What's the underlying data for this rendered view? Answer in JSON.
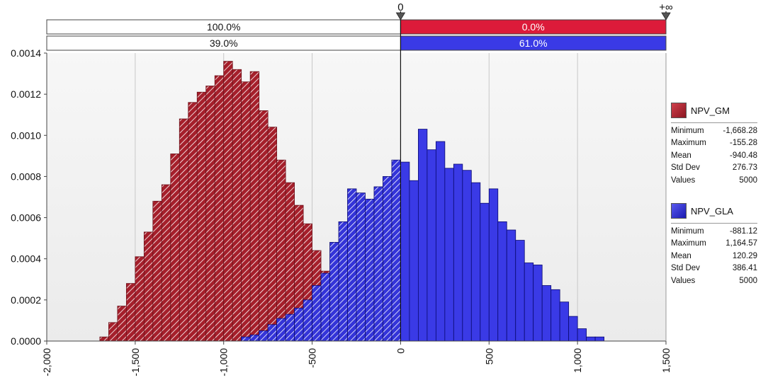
{
  "chart_data": {
    "type": "bar",
    "title": "",
    "xlabel": "",
    "ylabel": "",
    "xlim": [
      -2000,
      1500
    ],
    "ylim": [
      0,
      0.0014
    ],
    "bin_width": 50,
    "x_ticks": [
      "-2,000",
      "-1,500",
      "-1,000",
      "-500",
      "0",
      "500",
      "1,000",
      "1,500"
    ],
    "y_ticks": [
      "0.0000",
      "0.0002",
      "0.0004",
      "0.0006",
      "0.0008",
      "0.0010",
      "0.0012",
      "0.0014"
    ],
    "grid": true,
    "legend_position": "right",
    "series": [
      {
        "name": "NPV_GM",
        "color": "#b3232f",
        "bins_start": [
          -1700,
          -1650,
          -1600,
          -1550,
          -1500,
          -1450,
          -1400,
          -1350,
          -1300,
          -1250,
          -1200,
          -1150,
          -1100,
          -1050,
          -1000,
          -950,
          -900,
          -850,
          -800,
          -750,
          -700,
          -650,
          -600,
          -550,
          -500,
          -450,
          -400,
          -350,
          -300,
          -250
        ],
        "density": [
          2e-05,
          9e-05,
          0.00017,
          0.00028,
          0.00041,
          0.00053,
          0.00068,
          0.00076,
          0.00091,
          0.00108,
          0.00116,
          0.00121,
          0.00124,
          0.00129,
          0.00136,
          0.00132,
          0.00126,
          0.00131,
          0.00112,
          0.00104,
          0.00088,
          0.00077,
          0.00066,
          0.00057,
          0.00044,
          0.00034,
          0.00022,
          0.00015,
          9e-05,
          4e-05
        ],
        "stats": [
          {
            "label": "Minimum",
            "value": "-1,668.28"
          },
          {
            "label": "Maximum",
            "value": "-155.28"
          },
          {
            "label": "Mean",
            "value": "-940.48"
          },
          {
            "label": "Std Dev",
            "value": "276.73"
          },
          {
            "label": "Values",
            "value": "5000"
          }
        ]
      },
      {
        "name": "NPV_GLA",
        "color": "#3a3ae6",
        "bins_start": [
          -900,
          -850,
          -800,
          -750,
          -700,
          -650,
          -600,
          -550,
          -500,
          -450,
          -400,
          -350,
          -300,
          -250,
          -200,
          -150,
          -100,
          -50,
          0,
          50,
          100,
          150,
          200,
          250,
          300,
          350,
          400,
          450,
          500,
          550,
          600,
          650,
          700,
          750,
          800,
          850,
          900,
          950,
          1000,
          1050,
          1100
        ],
        "density": [
          2e-05,
          3e-05,
          5e-05,
          8e-05,
          0.00011,
          0.00013,
          0.00016,
          0.0002,
          0.00027,
          0.00033,
          0.00048,
          0.00058,
          0.00074,
          0.00072,
          0.00069,
          0.00075,
          0.0008,
          0.00088,
          0.00087,
          0.00078,
          0.00103,
          0.00093,
          0.00097,
          0.00084,
          0.00086,
          0.00083,
          0.00077,
          0.00067,
          0.00074,
          0.00058,
          0.00054,
          0.00049,
          0.00038,
          0.00037,
          0.00027,
          0.00025,
          0.00019,
          0.00012,
          6e-05,
          2e-05,
          2e-05
        ],
        "stats": [
          {
            "label": "Minimum",
            "value": "-881.12"
          },
          {
            "label": "Maximum",
            "value": "1,164.57"
          },
          {
            "label": "Mean",
            "value": "120.29"
          },
          {
            "label": "Std Dev",
            "value": "386.41"
          },
          {
            "label": "Values",
            "value": "5000"
          }
        ]
      }
    ],
    "delimiters": {
      "markers": [
        "0",
        "+∞"
      ],
      "rows": [
        {
          "series": "NPV_GM",
          "left": "100.0%",
          "right": "0.0%"
        },
        {
          "series": "NPV_GLA",
          "left": "39.0%",
          "right": "61.0%"
        }
      ]
    }
  }
}
